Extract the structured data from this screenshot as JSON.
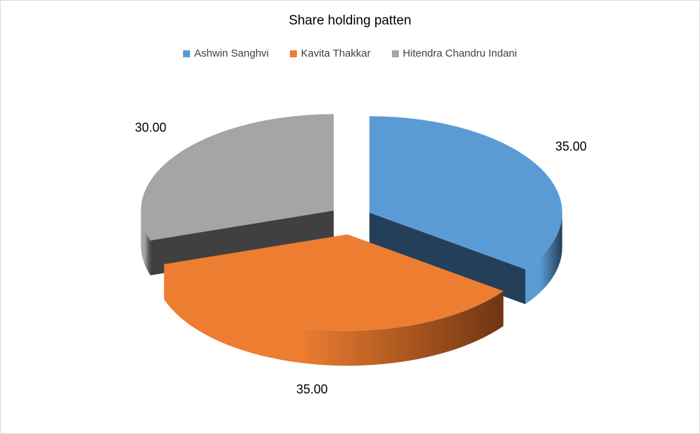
{
  "chart_data": {
    "type": "pie",
    "title": "Share holding patten",
    "legend_position": "top",
    "three_d": true,
    "exploded": true,
    "labels": [
      "Ashwin Sanghvi",
      "Kavita Thakkar",
      "Hitendra Chandru Indani"
    ],
    "values": [
      35.0,
      35.0,
      30.0
    ],
    "data_labels": [
      "35.00",
      "35.00",
      "30.00"
    ],
    "colors": [
      "#5b9bd5",
      "#ed7d31",
      "#a5a5a5"
    ],
    "side_colors": [
      "#243f5a",
      "#6f3511",
      "#404040"
    ]
  }
}
